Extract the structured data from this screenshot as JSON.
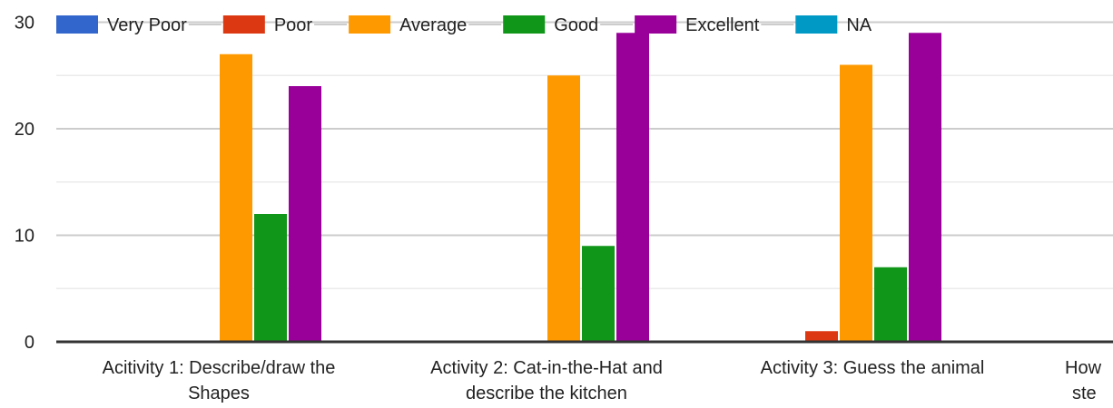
{
  "chart_data": {
    "type": "bar",
    "categories": [
      [
        "Acitivity 1: Describe/draw the",
        "Shapes"
      ],
      [
        "Activity 2: Cat-in-the-Hat and",
        "describe the kitchen"
      ],
      [
        "Activity 3: Guess the animal"
      ],
      [
        "How",
        "ste"
      ]
    ],
    "series": [
      {
        "name": "Very Poor",
        "color": "#3366cc",
        "values": [
          0,
          0,
          0,
          null
        ]
      },
      {
        "name": "Poor",
        "color": "#dc3912",
        "values": [
          0,
          0,
          1,
          null
        ]
      },
      {
        "name": "Average",
        "color": "#ff9900",
        "values": [
          27,
          25,
          26,
          null
        ]
      },
      {
        "name": "Good",
        "color": "#109618",
        "values": [
          12,
          9,
          7,
          null
        ]
      },
      {
        "name": "Excellent",
        "color": "#990099",
        "values": [
          24,
          29,
          29,
          null
        ]
      },
      {
        "name": "NA",
        "color": "#0099c6",
        "values": [
          0,
          0,
          0,
          null
        ]
      }
    ],
    "yticks": [
      "0",
      "10",
      "20",
      "30"
    ],
    "ylim": [
      0,
      30
    ],
    "minor_gridlines": true,
    "legend_position": "top",
    "xlabel": "",
    "ylabel": ""
  }
}
